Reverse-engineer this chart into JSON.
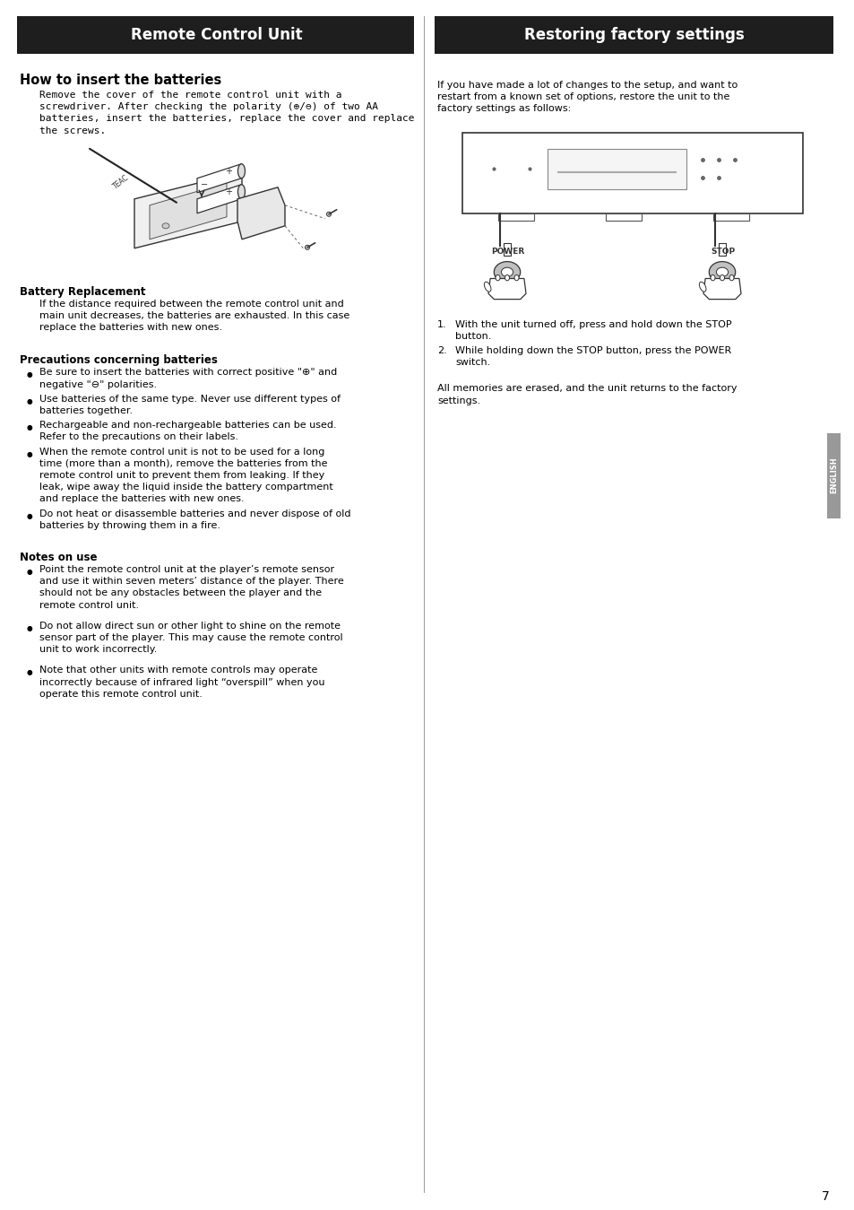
{
  "left_header": "Remote Control Unit",
  "right_header": "Restoring factory settings",
  "left_section1_title": "How to insert the batteries",
  "left_section1_body_lines": [
    "Remove the cover of the remote control unit with a",
    "screwdriver. After checking the polarity (⊕/⊖) of two AA",
    "batteries, insert the batteries, replace the cover and replace",
    "the screws."
  ],
  "left_section2_title": "Battery Replacement",
  "left_section2_body_lines": [
    "If the distance required between the remote control unit and",
    "main unit decreases, the batteries are exhausted. In this case",
    "replace the batteries with new ones."
  ],
  "left_section3_title": "Precautions concerning batteries",
  "left_section3_bullets": [
    [
      "Be sure to insert the batteries with correct positive \"⊕\" and",
      "negative \"⊖\" polarities."
    ],
    [
      "Use batteries of the same type. Never use different types of",
      "batteries together."
    ],
    [
      "Rechargeable and non-rechargeable batteries can be used.",
      "Refer to the precautions on their labels."
    ],
    [
      "When the remote control unit is not to be used for a long",
      "time (more than a month), remove the batteries from the",
      "remote control unit to prevent them from leaking. If they",
      "leak, wipe away the liquid inside the battery compartment",
      "and replace the batteries with new ones."
    ],
    [
      "Do not heat or disassemble batteries and never dispose of old",
      "batteries by throwing them in a fire."
    ]
  ],
  "left_section4_title": "Notes on use",
  "left_section4_bullets": [
    [
      "Point the remote control unit at the player’s remote sensor",
      "and use it within seven meters’ distance of the player. There",
      "should not be any obstacles between the player and the",
      "remote control unit."
    ],
    [
      "Do not allow direct sun or other light to shine on the remote",
      "sensor part of the player. This may cause the remote control",
      "unit to work incorrectly."
    ],
    [
      "Note that other units with remote controls may operate",
      "incorrectly because of infrared light “overspill” when you",
      "operate this remote control unit."
    ]
  ],
  "right_section1_body_lines": [
    "If you have made a lot of changes to the setup, and want to",
    "restart from a known set of options, restore the unit to the",
    "factory settings as follows:"
  ],
  "right_step1_lines": [
    "With the unit turned off, press and hold down the STOP",
    "button."
  ],
  "right_step2_lines": [
    "While holding down the STOP button, press the POWER",
    "switch."
  ],
  "right_closing_lines": [
    "All memories are erased, and the unit returns to the factory",
    "settings."
  ],
  "page_number": "7",
  "english_label": "ENGLISH",
  "bg_color": "#ffffff",
  "header_bg": "#1e1e1e",
  "header_fg": "#ffffff",
  "text_color": "#000000",
  "divider_color": "#000000"
}
